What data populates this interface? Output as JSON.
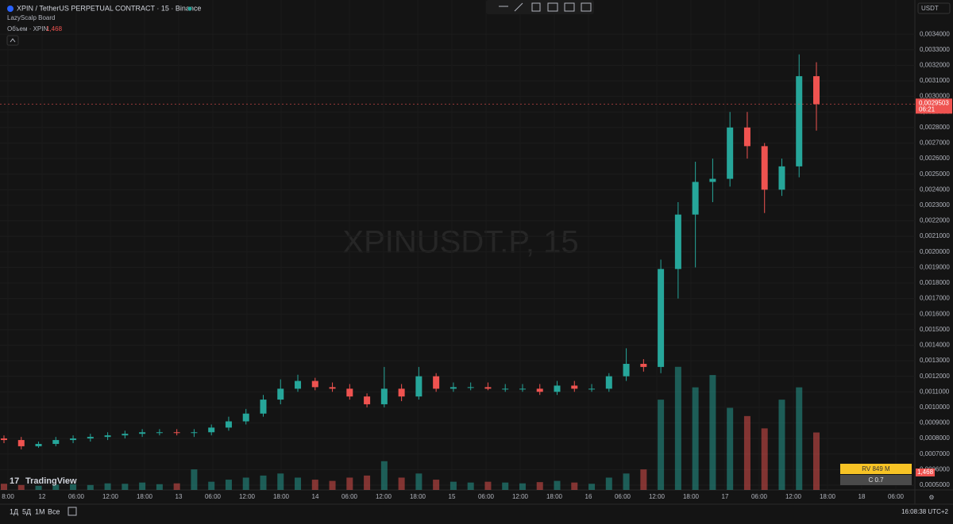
{
  "header": {
    "symbol": "XPIN / TetherUS PERPETUAL CONTRACT · 15 · Binance",
    "indicator": "LazyScalp Board",
    "volume_label": "Объем · XPIN",
    "volume_value": "1,468"
  },
  "watermark": "XPINUSDT.P, 15",
  "logo": "TradingView",
  "chart_data": {
    "type": "candlestick",
    "currency": "USDT",
    "ylim": [
      0.000408,
      0.00362
    ],
    "yticks": [
      {
        "value": 0.0005,
        "label": "0,0005000"
      },
      {
        "value": 0.0006,
        "label": "0,0006000"
      },
      {
        "value": 0.0007,
        "label": "0,0007000"
      },
      {
        "value": 0.0008,
        "label": "0,0008000"
      },
      {
        "value": 0.0009,
        "label": "0,0009000"
      },
      {
        "value": 0.001,
        "label": "0,0010000"
      },
      {
        "value": 0.0011,
        "label": "0,0011000"
      },
      {
        "value": 0.0012,
        "label": "0,0012000"
      },
      {
        "value": 0.0013,
        "label": "0,0013000"
      },
      {
        "value": 0.0014,
        "label": "0,0014000"
      },
      {
        "value": 0.0015,
        "label": "0,0015000"
      },
      {
        "value": 0.0016,
        "label": "0,0016000"
      },
      {
        "value": 0.0017,
        "label": "0,0017000"
      },
      {
        "value": 0.0018,
        "label": "0,0018000"
      },
      {
        "value": 0.0019,
        "label": "0,0019000"
      },
      {
        "value": 0.002,
        "label": "0,0020000"
      },
      {
        "value": 0.0021,
        "label": "0,0021000"
      },
      {
        "value": 0.0022,
        "label": "0,0022000"
      },
      {
        "value": 0.0023,
        "label": "0,0023000"
      },
      {
        "value": 0.0024,
        "label": "0,0024000"
      },
      {
        "value": 0.0025,
        "label": "0,0025000"
      },
      {
        "value": 0.0026,
        "label": "0,0026000"
      },
      {
        "value": 0.0027,
        "label": "0,0027000"
      },
      {
        "value": 0.0028,
        "label": "0,0028000"
      },
      {
        "value": 0.0029,
        "label": "0,0029000"
      },
      {
        "value": 0.003,
        "label": "0,0030000"
      },
      {
        "value": 0.0031,
        "label": "0,0031000"
      },
      {
        "value": 0.0032,
        "label": "0,0032000"
      },
      {
        "value": 0.0033,
        "label": "0,0033000"
      },
      {
        "value": 0.0034,
        "label": "0,0034000"
      }
    ],
    "time_labels": [
      "8:00",
      "12",
      "06:00",
      "12:00",
      "18:00",
      "13",
      "06:00",
      "12:00",
      "18:00",
      "14",
      "06:00",
      "12:00",
      "18:00",
      "15",
      "06:00",
      "12:00",
      "18:00",
      "16",
      "06:00",
      "12:00",
      "18:00",
      "17",
      "06:00",
      "12:00",
      "18:00",
      "18",
      "06:00"
    ],
    "open": [
      0.0008,
      0.00079,
      0.00075,
      0.000765,
      0.00079,
      0.0008,
      0.00081,
      0.00082,
      0.00083,
      0.00084,
      0.00084,
      0.000835,
      0.00084,
      0.00087,
      0.00091,
      0.00096,
      0.00105,
      0.00112,
      0.00117,
      0.00113,
      0.00112,
      0.00107,
      0.00102,
      0.00112,
      0.00107,
      0.0012,
      0.00112,
      0.00113,
      0.00113,
      0.00112,
      0.00112,
      0.00112,
      0.0011,
      0.00114,
      0.00112,
      0.00112,
      0.0012,
      0.00128,
      0.00126,
      0.00189,
      0.00224,
      0.00245,
      0.00247,
      0.0028,
      0.00268,
      0.0024,
      0.00255,
      0.00313
    ],
    "high": [
      0.00082,
      0.00081,
      0.00078,
      0.00081,
      0.00082,
      0.00083,
      0.00084,
      0.00085,
      0.00086,
      0.00086,
      0.00086,
      0.00086,
      0.00089,
      0.00094,
      0.00099,
      0.00108,
      0.00118,
      0.00121,
      0.00119,
      0.00116,
      0.00115,
      0.00109,
      0.00126,
      0.00115,
      0.00126,
      0.00122,
      0.00116,
      0.00116,
      0.00116,
      0.00115,
      0.00115,
      0.00115,
      0.00117,
      0.00117,
      0.00115,
      0.00122,
      0.00138,
      0.00131,
      0.00195,
      0.00232,
      0.00258,
      0.0026,
      0.0029,
      0.0029,
      0.0027,
      0.0026,
      0.00327,
      0.00322
    ],
    "low": [
      0.00077,
      0.00073,
      0.00074,
      0.00075,
      0.00077,
      0.00078,
      0.00079,
      0.0008,
      0.00081,
      0.00082,
      0.00082,
      0.00081,
      0.00082,
      0.00085,
      0.00089,
      0.00094,
      0.00102,
      0.0011,
      0.00111,
      0.0011,
      0.00105,
      0.001,
      0.001,
      0.00104,
      0.00105,
      0.0011,
      0.0011,
      0.00111,
      0.00111,
      0.0011,
      0.0011,
      0.00108,
      0.00108,
      0.0011,
      0.0011,
      0.0011,
      0.00117,
      0.00123,
      0.00122,
      0.0017,
      0.0019,
      0.00232,
      0.00242,
      0.0026,
      0.00225,
      0.00236,
      0.00248,
      0.00278
    ],
    "close": [
      0.00079,
      0.00075,
      0.000765,
      0.00079,
      0.0008,
      0.00081,
      0.00082,
      0.00083,
      0.00084,
      0.00084,
      0.000835,
      0.00084,
      0.00087,
      0.00091,
      0.00096,
      0.00105,
      0.00112,
      0.00117,
      0.00113,
      0.00112,
      0.00107,
      0.00102,
      0.00112,
      0.00107,
      0.0012,
      0.00112,
      0.00113,
      0.00113,
      0.00112,
      0.00112,
      0.00112,
      0.0011,
      0.00114,
      0.00112,
      0.00112,
      0.0012,
      0.00128,
      0.00126,
      0.00189,
      0.00224,
      0.00245,
      0.00247,
      0.0028,
      0.00268,
      0.0024,
      0.00255,
      0.00313,
      0.00295
    ],
    "volume": [
      1.5,
      1.2,
      1,
      1.3,
      1.4,
      1.2,
      1.6,
      1.5,
      1.8,
      1.4,
      1.6,
      5,
      2,
      2.5,
      3,
      3.5,
      4,
      3,
      2.5,
      2.2,
      3,
      3.5,
      7,
      3,
      4,
      2.5,
      2,
      1.8,
      2,
      1.8,
      1.6,
      1.9,
      2.2,
      1.8,
      1.5,
      3,
      4,
      5,
      22,
      30,
      25,
      28,
      20,
      18,
      15,
      22,
      25,
      14
    ],
    "volume_lim": [
      0,
      40
    ],
    "last_price": {
      "value": 0.0029503,
      "label": "0,0029503"
    },
    "countdown": "06:21",
    "colors": {
      "up": "#26a69a",
      "down": "#ef5350"
    }
  },
  "badges": {
    "rv": "RV 849 M",
    "c": "C 0.7"
  },
  "toolbar": {
    "ranges": [
      "1Д",
      "5Д",
      "1М",
      "Все"
    ],
    "clock": "16:08:38 UTC+2"
  }
}
